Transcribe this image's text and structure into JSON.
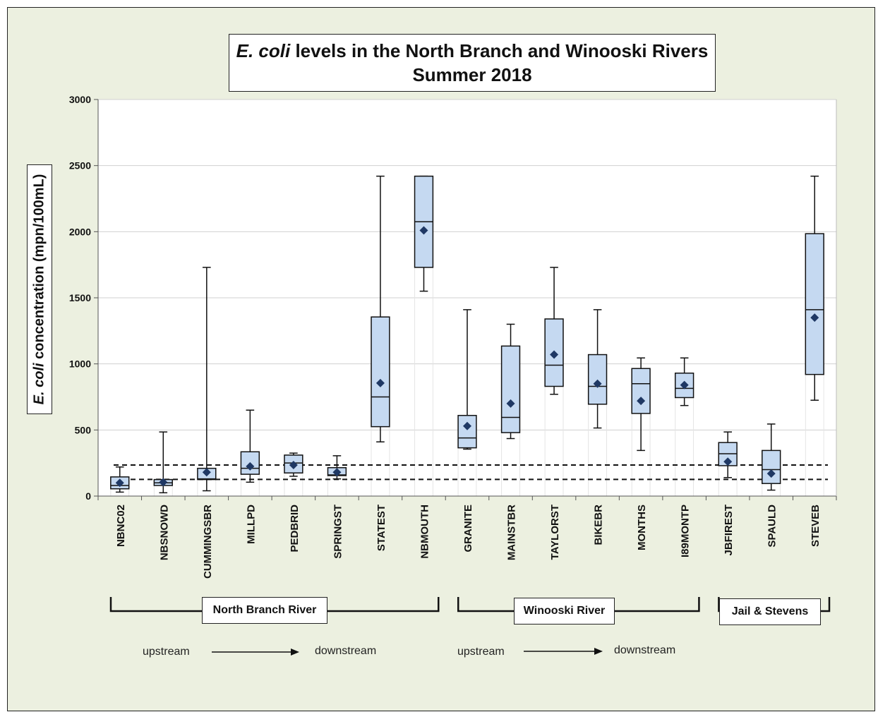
{
  "title": {
    "italic": "E. coli",
    "line1_rest": " levels in the North Branch and Winooski Rivers",
    "line2": "Summer 2018"
  },
  "ylabel": {
    "italic": "E. coli",
    "rest": " concentration (mpn/100mL)"
  },
  "groups": [
    {
      "label": "North Branch River",
      "first": 0,
      "last": 7
    },
    {
      "label": "Winooski River",
      "first": 8,
      "last": 13
    },
    {
      "label": "Jail & Stevens",
      "first": 14,
      "last": 16
    }
  ],
  "direction": {
    "left": {
      "from": "upstream",
      "to": "downstream"
    },
    "right": {
      "from": "upstream",
      "to": "downstream"
    }
  },
  "colors": {
    "box_fill": "#c5d9f1",
    "mean_marker": "#1f3864",
    "background": "#ecf0e0"
  },
  "chart_data": {
    "type": "boxplot",
    "categories": [
      "NBNC02",
      "NBSNOWD",
      "CUMMINGSBR",
      "MILLPD",
      "PEDBRID",
      "SPRINGST",
      "STATEST",
      "NBMOUTH",
      "GRANITE",
      "MAINSTBR",
      "TAYLORST",
      "BIKEBR",
      "MONTHS",
      "I89MONTP",
      "JBFIREST",
      "SPAULD",
      "STEVEB"
    ],
    "ylim": [
      0,
      3000
    ],
    "yticks": [
      0,
      500,
      1000,
      1500,
      2000,
      2500,
      3000
    ],
    "grid": true,
    "series": [
      {
        "min": 30,
        "q1": 55,
        "median": 80,
        "q3": 145,
        "max": 220,
        "mean": 100
      },
      {
        "min": 25,
        "q1": 80,
        "median": 100,
        "q3": 125,
        "max": 485,
        "mean": 105
      },
      {
        "min": 40,
        "q1": 125,
        "median": 130,
        "q3": 210,
        "max": 1730,
        "mean": 180
      },
      {
        "min": 105,
        "q1": 165,
        "median": 210,
        "q3": 335,
        "max": 650,
        "mean": 225
      },
      {
        "min": 150,
        "q1": 175,
        "median": 250,
        "q3": 310,
        "max": 325,
        "mean": 235
      },
      {
        "min": 130,
        "q1": 155,
        "median": 160,
        "q3": 215,
        "max": 305,
        "mean": 180
      },
      {
        "min": 410,
        "q1": 525,
        "median": 750,
        "q3": 1355,
        "max": 2420,
        "mean": 855
      },
      {
        "min": 1550,
        "q1": 1730,
        "median": 2075,
        "q3": 2420,
        "max": 2420,
        "mean": 2010
      },
      {
        "min": 355,
        "q1": 365,
        "median": 440,
        "q3": 610,
        "max": 1410,
        "mean": 530
      },
      {
        "min": 435,
        "q1": 480,
        "median": 595,
        "q3": 1135,
        "max": 1300,
        "mean": 700
      },
      {
        "min": 770,
        "q1": 830,
        "median": 990,
        "q3": 1340,
        "max": 1730,
        "mean": 1070
      },
      {
        "min": 515,
        "q1": 695,
        "median": 830,
        "q3": 1070,
        "max": 1410,
        "mean": 850
      },
      {
        "min": 345,
        "q1": 625,
        "median": 850,
        "q3": 965,
        "max": 1045,
        "mean": 720
      },
      {
        "min": 685,
        "q1": 745,
        "median": 815,
        "q3": 930,
        "max": 1045,
        "mean": 840
      },
      {
        "min": 140,
        "q1": 230,
        "median": 320,
        "q3": 405,
        "max": 485,
        "mean": 260
      },
      {
        "min": 45,
        "q1": 95,
        "median": 200,
        "q3": 345,
        "max": 545,
        "mean": 170
      },
      {
        "min": 725,
        "q1": 920,
        "median": 1410,
        "q3": 1985,
        "max": 2420,
        "mean": 1350
      }
    ],
    "reference_lines": [
      235,
      126
    ]
  }
}
